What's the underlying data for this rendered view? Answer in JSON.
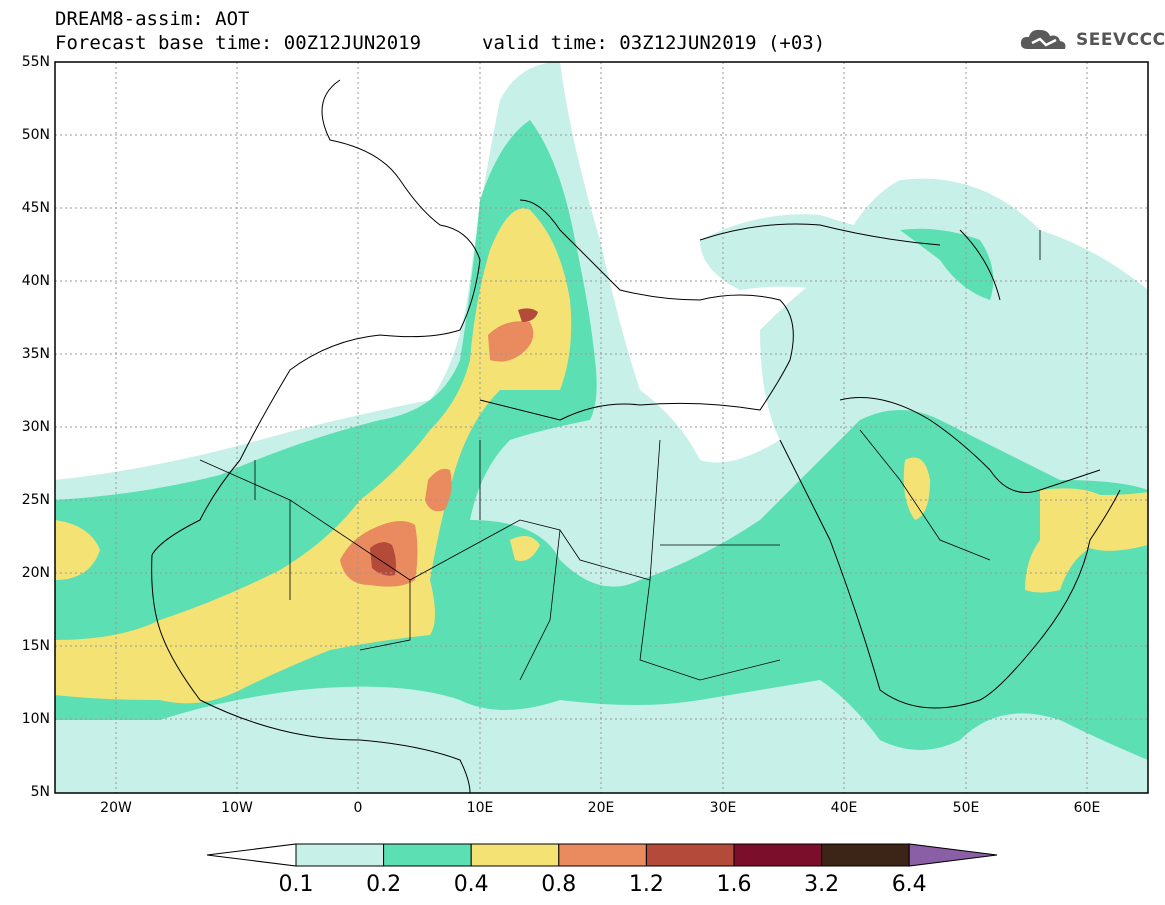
{
  "header": {
    "title": "DREAM8-assim: AOT",
    "base_time": "Forecast base time: 00Z12JUN2019",
    "valid_time": "valid time: 03Z12JUN2019 (+03)",
    "logo_text": "SEEVCCC"
  },
  "map": {
    "lon_range": [
      -25,
      65
    ],
    "lat_range": [
      5,
      55
    ],
    "lat_ticks": [
      "55N",
      "50N",
      "45N",
      "40N",
      "35N",
      "30N",
      "25N",
      "20N",
      "15N",
      "10N",
      "5N"
    ],
    "lon_ticks": [
      "20W",
      "10W",
      "0",
      "10E",
      "20E",
      "30E",
      "40E",
      "50E",
      "60E"
    ],
    "grid": true
  },
  "colorbar": {
    "labels": [
      "0.1",
      "0.2",
      "0.4",
      "0.8",
      "1.2",
      "1.6",
      "3.2",
      "6.4"
    ],
    "colors": [
      "#ffffff",
      "#c6f0e8",
      "#5ddfb4",
      "#f5e275",
      "#e98a5f",
      "#b44a3a",
      "#7b0e2b",
      "#3c2416",
      "#8a5fa5"
    ]
  }
}
